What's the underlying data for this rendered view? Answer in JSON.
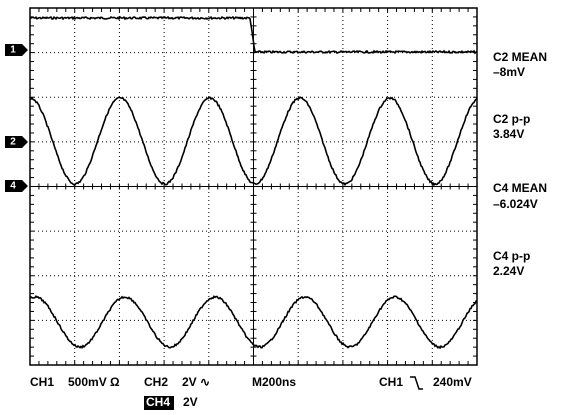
{
  "channel_markers": [
    "1",
    "2",
    "4"
  ],
  "measurements": [
    {
      "label": "C2 MEAN",
      "value": "–8mV"
    },
    {
      "label": "C2 p-p",
      "value": "3.84V"
    },
    {
      "label": "C4 MEAN",
      "value": "–6.024V"
    },
    {
      "label": "C4 p-p",
      "value": "2.24V"
    }
  ],
  "status": {
    "ch1": "CH1",
    "ch1_scale": "500mV Ω",
    "ch2": "CH2",
    "ch2_scale": "2V ∿",
    "timebase": "M200ns",
    "trigger_source": "CH1",
    "trigger_level": "240mV",
    "ch4": "CH4",
    "ch4_scale": "2V"
  }
}
